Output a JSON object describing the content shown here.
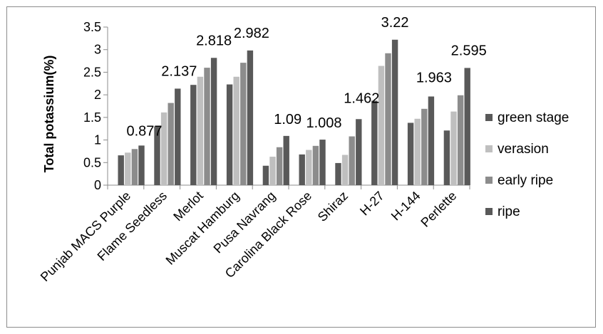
{
  "chart_data": {
    "type": "bar",
    "title": "",
    "xlabel": "",
    "ylabel": "Total potassium(%)",
    "ylim": [
      0,
      3.5
    ],
    "yticks": [
      "0",
      "0.5",
      "1",
      "1.5",
      "2",
      "2.5",
      "3",
      "3.5"
    ],
    "grid": false,
    "legend_position": "right",
    "categories": [
      "Punjab MACS Purple",
      "Flame Seedless",
      "Merlot",
      "Muscat Hamburg",
      "Pusa Navrang",
      "Carolina Black Rose",
      "Shiraz",
      "H-27",
      "H-144",
      "Perlette"
    ],
    "series": [
      {
        "name": "green stage",
        "color": "#595959",
        "values": [
          0.66,
          1.3,
          2.22,
          2.23,
          0.43,
          0.68,
          0.49,
          1.87,
          1.38,
          1.21
        ]
      },
      {
        "name": "verasion",
        "color": "#bfbfbf",
        "values": [
          0.72,
          1.61,
          2.4,
          2.4,
          0.63,
          0.78,
          0.67,
          2.64,
          1.47,
          1.63
        ]
      },
      {
        "name": "early ripe",
        "color": "#8c8c8c",
        "values": [
          0.8,
          1.82,
          2.6,
          2.71,
          0.84,
          0.87,
          1.08,
          2.92,
          1.69,
          1.99
        ]
      },
      {
        "name": "ripe",
        "color": "#595959",
        "values": [
          0.877,
          2.137,
          2.818,
          2.982,
          1.09,
          1.008,
          1.462,
          3.22,
          1.963,
          2.595
        ]
      }
    ],
    "data_labels": {
      "series": "ripe",
      "text": [
        "0.877",
        "2.137",
        "2.818",
        "2.982",
        "1.09",
        "1.008",
        "1.462",
        "3.22",
        "1.963",
        "2.595"
      ]
    }
  }
}
